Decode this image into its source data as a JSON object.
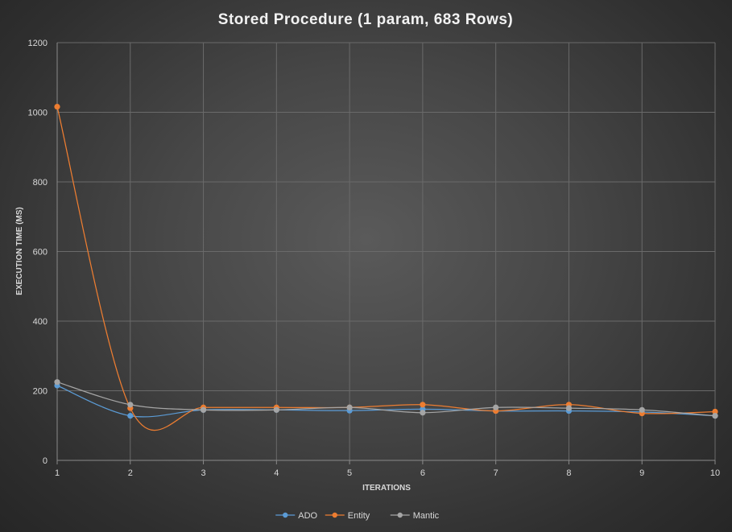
{
  "chart_data": {
    "type": "line",
    "title": "Stored Procedure (1 param, 683 Rows)",
    "xlabel": "ITERATIONS",
    "ylabel": "EXECUTION TIME (MS)",
    "x": [
      1,
      2,
      3,
      4,
      5,
      6,
      7,
      8,
      9,
      10
    ],
    "ylim": [
      0,
      1200
    ],
    "yticks": [
      0,
      200,
      400,
      600,
      800,
      1000,
      1200
    ],
    "grid": true,
    "smooth": true,
    "legend_position": "bottom",
    "series": [
      {
        "name": "ADO",
        "color": "#5b9bd5",
        "values": [
          215,
          128,
          145,
          145,
          143,
          147,
          142,
          142,
          139,
          128
        ]
      },
      {
        "name": "Entity",
        "color": "#ed7d31",
        "values": [
          1016,
          150,
          152,
          152,
          152,
          160,
          142,
          160,
          135,
          140
        ]
      },
      {
        "name": "Mantic",
        "color": "#a5a5a5",
        "values": [
          225,
          160,
          145,
          145,
          152,
          137,
          152,
          150,
          145,
          128
        ]
      }
    ]
  }
}
